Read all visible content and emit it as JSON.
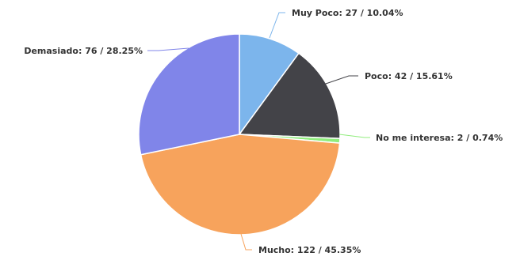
{
  "chart_data": {
    "type": "pie",
    "title": "",
    "start_angle_deg": 0,
    "direction": "clockwise",
    "slices": [
      {
        "label": "Muy Poco: 27 / 10.04%",
        "category": "Muy Poco",
        "value": 27,
        "percent": 10.04,
        "color": "#7cb5ec"
      },
      {
        "label": "Poco: 42 / 15.61%",
        "category": "Poco",
        "value": 42,
        "percent": 15.61,
        "color": "#434348"
      },
      {
        "label": "No me interesa: 2 / 0.74%",
        "category": "No me interesa",
        "value": 2,
        "percent": 0.74,
        "color": "#90ed7d"
      },
      {
        "label": "Mucho: 122 / 45.35%",
        "category": "Mucho",
        "value": 122,
        "percent": 45.35,
        "color": "#f7a35c"
      },
      {
        "label": "Demasiado: 76 / 28.25%",
        "category": "Demasiado",
        "value": 76,
        "percent": 28.25,
        "color": "#8085e9"
      }
    ]
  }
}
